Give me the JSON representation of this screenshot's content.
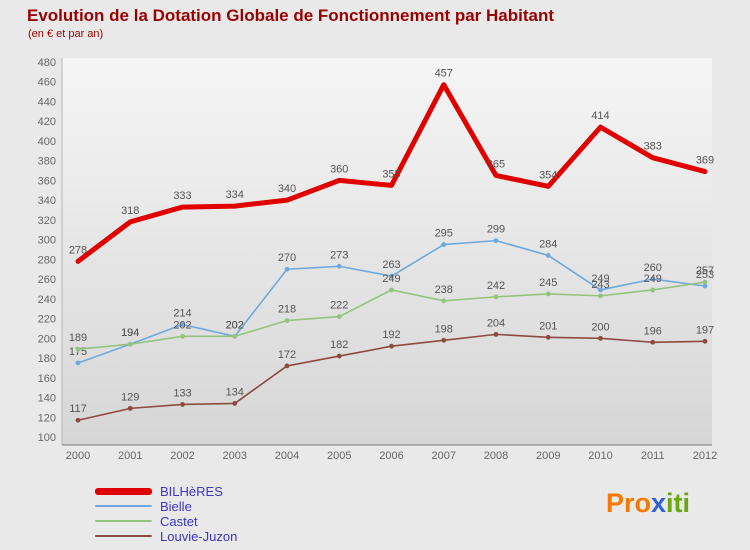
{
  "chart_data": {
    "type": "line",
    "title": "Evolution de la Dotation Globale de Fonctionnement par Habitant",
    "subtitle": "(en € et par an)",
    "x": [
      2000,
      2001,
      2002,
      2003,
      2004,
      2005,
      2006,
      2007,
      2008,
      2009,
      2010,
      2011,
      2012
    ],
    "ylim": [
      100,
      480
    ],
    "ytick_step": 20,
    "grid": false,
    "legend_position": "bottom-left",
    "label_color": "#555555",
    "axis_color": "#777777",
    "tick_text_color": "#666666",
    "series": [
      {
        "name": "BILHèRES",
        "color": "#e10000",
        "stroke_width": 5,
        "values": [
          278,
          318,
          333,
          334,
          340,
          360,
          355,
          457,
          365,
          354,
          414,
          383,
          369
        ]
      },
      {
        "name": "Bielle",
        "color": "#6fa8dc",
        "stroke_width": 1.6,
        "values": [
          175,
          194,
          214,
          202,
          270,
          273,
          263,
          295,
          299,
          284,
          249,
          260,
          253
        ]
      },
      {
        "name": "Castet",
        "color": "#93c47d",
        "stroke_width": 1.6,
        "values": [
          189,
          194,
          202,
          202,
          218,
          222,
          249,
          238,
          242,
          245,
          243,
          249,
          257
        ]
      },
      {
        "name": "Louvie-Juzon",
        "color": "#8e4a41",
        "stroke_width": 1.6,
        "values": [
          117,
          129,
          133,
          134,
          172,
          182,
          192,
          198,
          204,
          201,
          200,
          196,
          197
        ]
      }
    ]
  },
  "logo": {
    "segments": [
      {
        "text": "Pro",
        "color": "#f57900"
      },
      {
        "text": "x",
        "color": "#2e63d4"
      },
      {
        "text": "iti",
        "color": "#6aa60f"
      }
    ]
  }
}
